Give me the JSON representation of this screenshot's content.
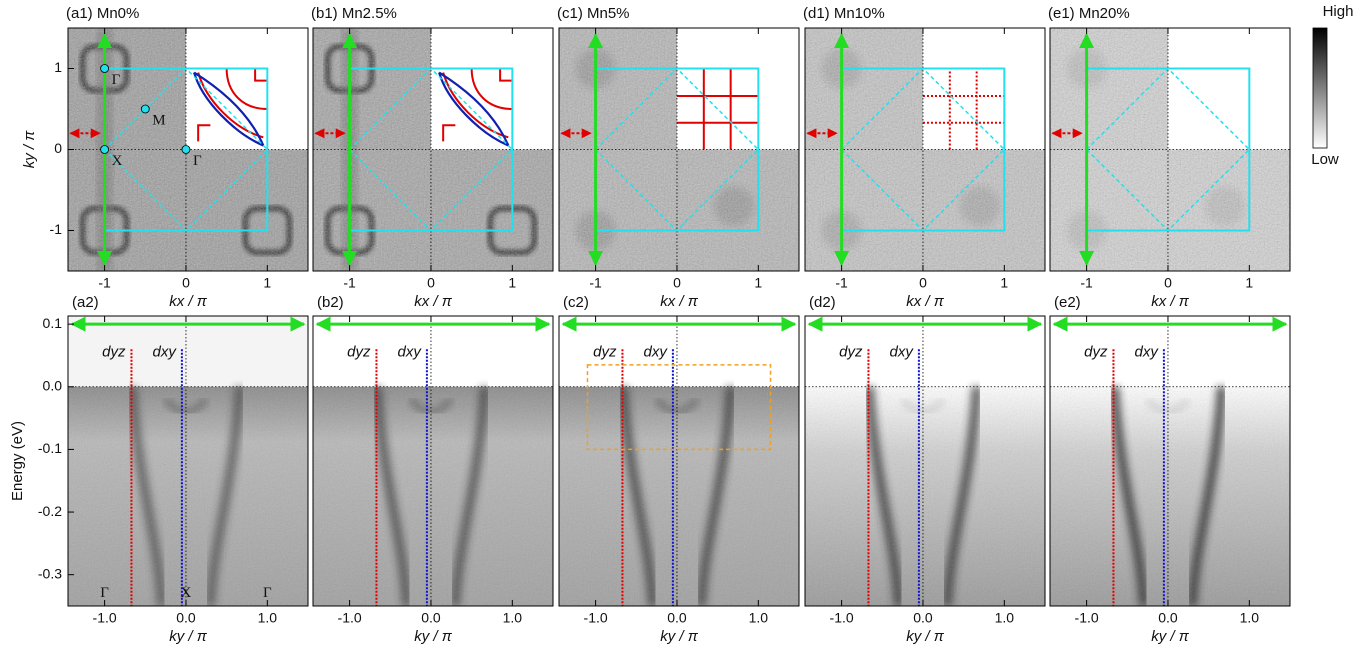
{
  "colorbar": {
    "high": "High",
    "low": "Low"
  },
  "chart_data": [
    {
      "type": "heatmap",
      "title": "(a1) Mn0%",
      "xlabel": "kx / π",
      "ylabel": "ky / π",
      "xlim": [
        -1.45,
        1.5
      ],
      "ylim": [
        -1.5,
        1.5
      ],
      "xticks": [
        -1,
        0,
        1
      ],
      "yticks": [
        -1,
        0,
        1
      ],
      "annotations": [
        {
          "text": "Γ",
          "x": -1,
          "y": 1
        },
        {
          "text": "M",
          "x": -0.5,
          "y": 0.5
        },
        {
          "text": "X",
          "x": -1,
          "y": 0
        },
        {
          "text": "Γ",
          "x": 0,
          "y": 0
        }
      ]
    },
    {
      "type": "heatmap",
      "title": "(b1) Mn2.5%",
      "xlabel": "kx / π",
      "xlim": [
        -1.45,
        1.5
      ],
      "ylim": [
        -1.5,
        1.5
      ],
      "xticks": [
        -1,
        0,
        1
      ]
    },
    {
      "type": "heatmap",
      "title": "(c1) Mn5%",
      "xlabel": "kx / π",
      "xlim": [
        -1.45,
        1.5
      ],
      "ylim": [
        -1.5,
        1.5
      ],
      "xticks": [
        -1,
        0,
        1
      ]
    },
    {
      "type": "heatmap",
      "title": "(d1) Mn10%",
      "xlabel": "kx / π",
      "xlim": [
        -1.45,
        1.5
      ],
      "ylim": [
        -1.5,
        1.5
      ],
      "xticks": [
        -1,
        0,
        1
      ]
    },
    {
      "type": "heatmap",
      "title": "(e1) Mn20%",
      "xlabel": "kx / π",
      "xlim": [
        -1.45,
        1.5
      ],
      "ylim": [
        -1.5,
        1.5
      ],
      "xticks": [
        -1,
        0,
        1
      ]
    },
    {
      "type": "dispersion",
      "title": "(a2)",
      "xlabel": "ky / π",
      "ylabel": "Energy (eV)",
      "xlim": [
        -1.45,
        1.5
      ],
      "ylim": [
        -0.35,
        0.113
      ],
      "xticks": [
        {
          "value": -1,
          "label": "-1.0"
        },
        {
          "value": 0,
          "label": "0.0"
        },
        {
          "value": 1,
          "label": "1.0"
        }
      ],
      "yticks": [
        0.1,
        {
          "value": 0,
          "label": "0.0"
        },
        -0.1,
        -0.2,
        -0.3
      ],
      "orbitals": [
        {
          "text": "dyz",
          "color": "#e00000"
        },
        {
          "text": "dxy",
          "color": "#1010d0"
        }
      ],
      "annotations": [
        {
          "text": "Γ",
          "x": -1,
          "y": -0.33
        },
        {
          "text": "X",
          "x": 0,
          "y": -0.33
        },
        {
          "text": "Γ",
          "x": 1,
          "y": -0.33
        }
      ]
    },
    {
      "type": "dispersion",
      "title": "(b2)",
      "xlabel": "ky / π",
      "xlim": [
        -1.45,
        1.5
      ],
      "ylim": [
        -0.35,
        0.113
      ],
      "xticks": [
        {
          "value": -1,
          "label": "-1.0"
        },
        {
          "value": 0,
          "label": "0.0"
        },
        {
          "value": 1,
          "label": "1.0"
        }
      ],
      "orbitals": [
        {
          "text": "dyz",
          "color": "#e00000"
        },
        {
          "text": "dxy",
          "color": "#1010d0"
        }
      ]
    },
    {
      "type": "dispersion",
      "title": "(c2)",
      "xlabel": "ky / π",
      "xlim": [
        -1.45,
        1.5
      ],
      "ylim": [
        -0.35,
        0.113
      ],
      "xticks": [
        {
          "value": -1,
          "label": "-1.0"
        },
        {
          "value": 0,
          "label": "0.0"
        },
        {
          "value": 1,
          "label": "1.0"
        }
      ],
      "orbitals": [
        {
          "text": "dyz",
          "color": "#e00000"
        },
        {
          "text": "dxy",
          "color": "#1010d0"
        }
      ]
    },
    {
      "type": "dispersion",
      "title": "(d2)",
      "xlabel": "ky / π",
      "xlim": [
        -1.45,
        1.5
      ],
      "ylim": [
        -0.35,
        0.113
      ],
      "xticks": [
        {
          "value": -1,
          "label": "-1.0"
        },
        {
          "value": 0,
          "label": "0.0"
        },
        {
          "value": 1,
          "label": "1.0"
        }
      ],
      "orbitals": [
        {
          "text": "dyz",
          "color": "#e00000"
        },
        {
          "text": "dxy",
          "color": "#1010d0"
        }
      ]
    },
    {
      "type": "dispersion",
      "title": "(e2)",
      "xlabel": "ky / π",
      "xlim": [
        -1.45,
        1.5
      ],
      "ylim": [
        -0.35,
        0.113
      ],
      "xticks": [
        {
          "value": -1,
          "label": "-1.0"
        },
        {
          "value": 0,
          "label": "0.0"
        },
        {
          "value": 1,
          "label": "1.0"
        }
      ],
      "orbitals": [
        {
          "text": "dyz",
          "color": "#e00000"
        },
        {
          "text": "dxy",
          "color": "#1010d0"
        }
      ]
    }
  ]
}
